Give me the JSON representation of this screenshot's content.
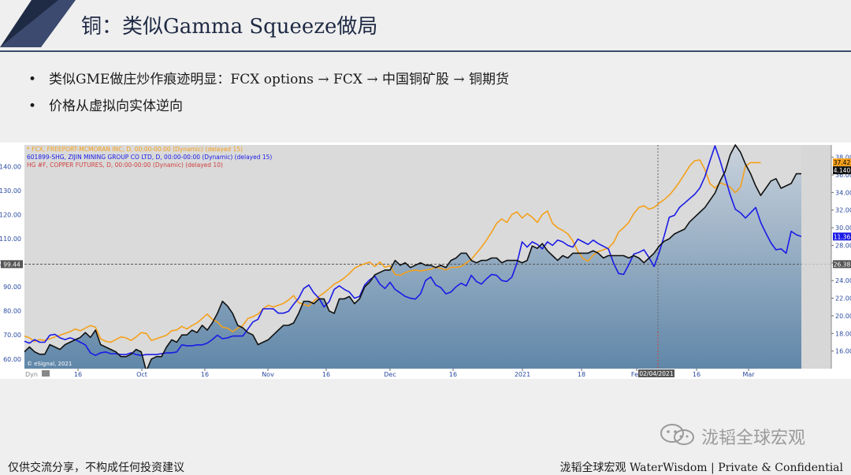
{
  "slide": {
    "title": "铜：类似Gamma Squeeze做局",
    "bullets": [
      "类似GME做庄炒作痕迹明显：FCX options → FCX → 中国铜矿股 → 铜期货",
      "价格从虚拟向实体逆向"
    ],
    "footer_left": "仅供交流分享，不构成任何投资建议",
    "footer_right": "泷韬全球宏观 WaterWisdom | Private & Confidential",
    "watermark": "泷韬全球宏观"
  },
  "colors": {
    "navy": "#1f2a44",
    "fcx": "#f5a01a",
    "zijin": "#1a1ae6",
    "copper": "#111111",
    "area_top": "#c9d2dc",
    "area_bottom": "#5f86a8",
    "marker": "#d04040"
  },
  "chart_data": {
    "type": "line",
    "legend": [
      "* FCX, FREEPORT-MCMORAN INC, D, 00:00-00:00 (Dynamic) (delayed 15)",
      "601899-SHG, ZIJIN MINING GROUP CO LTD, D, 00:00-00:00 (Dynamic) (delayed 15)",
      "HG #F, COPPER FUTURES, D, 00:00-00:00 (Dynamic) (delayed 10)"
    ],
    "left_axis": {
      "ticks": [
        "60.00",
        "70.00",
        "80.00",
        "90.00",
        "100.00",
        "110.00",
        "120.00",
        "130.00",
        "140.00"
      ],
      "range": [
        56,
        149
      ]
    },
    "right_axis": {
      "ticks": [
        "16.00",
        "18.00",
        "20.00",
        "22.00",
        "24.00",
        "26.00",
        "28.00",
        "30.00",
        "32.00",
        "34.00",
        "36.00",
        "38.00"
      ],
      "range": [
        14.0,
        39.4
      ]
    },
    "x_ticks": [
      "16",
      "Oct",
      "16",
      "Nov",
      "16",
      "Dec",
      "16",
      "2021",
      "18",
      "Feb",
      "16",
      "Mar"
    ],
    "ref_line_value": "99.44",
    "last_values": {
      "fcx": "37.42",
      "copper": "4.140",
      "zijin": "11.36",
      "ref_right": "26.38"
    },
    "cursor_date": "02/04/2021",
    "corner_label": "Dyn",
    "credit": "© eSignal, 2021",
    "series": [
      {
        "name": "HG #F, COPPER FUTURES",
        "role": "copper",
        "scale": "left",
        "values": [
          63,
          65,
          63,
          62,
          62,
          66,
          65,
          64,
          66,
          67,
          68,
          69,
          71,
          69,
          72,
          66,
          65,
          64,
          63,
          61,
          61,
          62,
          64,
          63,
          55,
          60,
          61,
          61,
          65,
          68,
          67,
          70,
          70,
          72,
          71,
          74,
          72,
          75,
          79,
          84,
          82,
          79,
          74,
          73,
          71,
          70,
          66,
          67,
          68,
          70,
          72,
          74,
          74,
          75,
          79,
          84,
          84,
          83,
          85,
          85,
          80,
          79,
          85,
          85,
          86,
          83,
          85,
          90,
          92,
          95,
          96,
          97,
          97,
          101,
          99,
          100,
          98,
          99,
          100,
          99,
          99,
          98,
          99,
          98,
          101,
          102,
          104,
          104,
          101,
          100,
          101,
          101,
          102,
          102,
          100,
          101,
          101,
          101,
          100,
          101,
          107,
          106,
          108,
          105,
          103,
          101,
          103,
          102,
          104,
          104,
          104,
          104,
          105,
          104,
          102,
          103,
          103,
          103,
          103,
          102,
          103,
          102,
          100,
          102,
          104,
          107,
          109,
          110,
          112,
          113,
          114,
          117,
          119,
          121,
          123,
          126,
          129,
          134,
          138,
          145,
          149,
          146,
          141,
          137,
          132,
          128,
          131,
          134,
          135,
          131,
          132,
          133,
          137,
          137
        ]
      },
      {
        "name": "FCX",
        "role": "fcx",
        "scale": "right",
        "values": [
          17.7,
          17.5,
          17.1,
          17.3,
          17.2,
          17.4,
          17.6,
          17.8,
          18.0,
          18.2,
          18.5,
          18.3,
          18.6,
          18.9,
          18.7,
          17.4,
          17.1,
          17.0,
          17.3,
          17.6,
          17.5,
          17.2,
          17.6,
          18.1,
          18.0,
          17.2,
          17.4,
          17.6,
          17.8,
          18.3,
          18.4,
          18.8,
          18.5,
          18.9,
          19.2,
          19.7,
          20.2,
          19.6,
          19.3,
          18.7,
          18.6,
          18.2,
          18.6,
          18.9,
          19.7,
          19.9,
          20.2,
          20.8,
          21.2,
          21.0,
          21.2,
          21.4,
          21.8,
          22.3,
          21.5,
          21.3,
          21.1,
          21.7,
          22.2,
          22.6,
          23.1,
          23.6,
          23.9,
          24.3,
          24.8,
          25.4,
          25.7,
          25.9,
          26.1,
          25.6,
          26.1,
          25.5,
          25.7,
          24.7,
          24.6,
          24.9,
          25.1,
          25.2,
          25.1,
          25.2,
          25.3,
          25.5,
          25.4,
          25.2,
          25.5,
          25.5,
          25.6,
          26.0,
          26.4,
          27.1,
          27.8,
          28.6,
          29.5,
          30.5,
          31.0,
          30.6,
          31.5,
          31.8,
          31.1,
          31.6,
          31.2,
          30.6,
          31.5,
          31.9,
          30.5,
          30.0,
          29.7,
          29.3,
          28.5,
          27.3,
          26.5,
          26.2,
          26.9,
          27.3,
          27.5,
          27.7,
          28.3,
          29.5,
          30.0,
          30.6,
          31.6,
          32.3,
          32.5,
          32.1,
          32.3,
          32.8,
          33.2,
          33.7,
          34.4,
          35.2,
          36.1,
          37.0,
          37.6,
          37.7,
          36.6,
          35.0,
          34.5,
          35.1,
          34.9,
          34.6,
          34.0,
          34.6,
          37.0,
          37.4,
          37.4,
          37.4
        ]
      },
      {
        "name": "601899-SHG, ZIJIN MINING GROUP CO LTD",
        "role": "zijin",
        "scale": "right",
        "values": [
          17.1,
          16.9,
          17.3,
          17.0,
          17.0,
          17.8,
          17.9,
          17.5,
          17.3,
          17.5,
          17.3,
          17.0,
          16.7,
          15.8,
          15.5,
          15.8,
          15.9,
          15.7,
          15.7,
          15.6,
          15.6,
          15.8,
          15.6,
          15.5,
          15.6,
          15.6,
          15.6,
          15.7,
          15.8,
          15.8,
          15.9,
          16.7,
          16.6,
          16.6,
          16.7,
          16.7,
          16.9,
          17.3,
          17.8,
          17.4,
          17.5,
          17.7,
          17.7,
          17.7,
          18.5,
          19.3,
          19.6,
          20.8,
          20.8,
          20.8,
          20.3,
          20.3,
          20.5,
          21.3,
          22.0,
          23.1,
          23.5,
          22.6,
          22.0,
          21.0,
          21.6,
          23.0,
          23.4,
          23.0,
          22.7,
          22.0,
          22.2,
          23.5,
          24.1,
          24.5,
          23.6,
          23.1,
          23.8,
          23.0,
          22.6,
          22.2,
          22.0,
          21.9,
          22.5,
          24.0,
          24.4,
          23.5,
          23.2,
          22.5,
          22.7,
          23.3,
          23.7,
          23.4,
          24.6,
          23.9,
          23.6,
          24.2,
          24.7,
          24.6,
          24.0,
          23.9,
          24.4,
          26.0,
          28.4,
          27.8,
          28.4,
          28.1,
          27.6,
          28.4,
          28.0,
          28.6,
          28.4,
          28.0,
          27.8,
          28.7,
          28.4,
          28.1,
          28.6,
          28.2,
          27.9,
          27.6,
          26.0,
          24.8,
          24.7,
          25.8,
          27.0,
          27.2,
          27.5,
          26.6,
          25.6,
          27.2,
          29.1,
          31.2,
          31.4,
          32.3,
          32.8,
          33.3,
          33.8,
          34.5,
          35.8,
          37.6,
          39.3,
          37.6,
          35.7,
          33.7,
          32.1,
          31.7,
          31.1,
          31.7,
          32.3,
          30.6,
          29.4,
          28.3,
          27.5,
          27.6,
          27.1,
          29.6,
          29.2,
          29.0
        ]
      }
    ]
  }
}
